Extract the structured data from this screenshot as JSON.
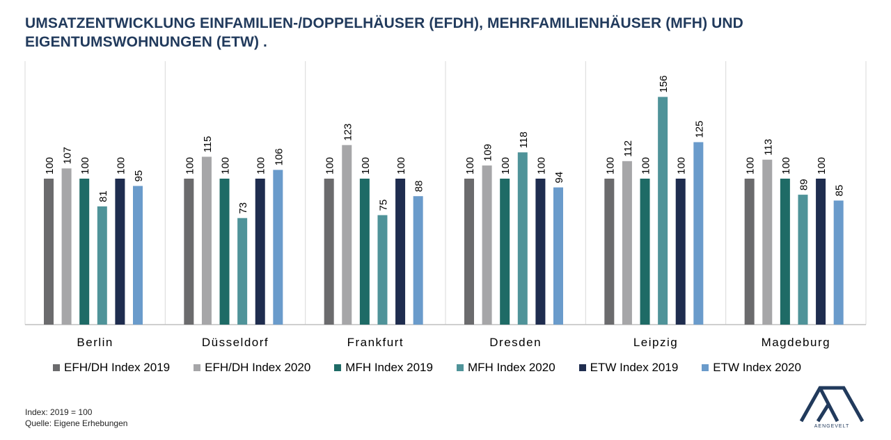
{
  "title_lines": [
    "UMSATZENTWICKLUNG EINFAMILIEN-/DOPPELHÄUSER (EFDH), MEHRFAMILIENHÄUSER (MFH) UND",
    "EIGENTUMSWOHNUNGEN (ETW) ."
  ],
  "footnotes": [
    "Index: 2019 = 100",
    "Quelle: Eigene Erhebungen"
  ],
  "logo": {
    "name": "aengevelt-logo-icon",
    "text": "AENGEVELT",
    "color": "#213a5c"
  },
  "colors": {
    "title": "#213a5c",
    "grid": "#d9d9d9",
    "axis": "#bfbfbf"
  },
  "chart_data": {
    "type": "bar",
    "categories": [
      "Berlin",
      "Düsseldorf",
      "Frankfurt",
      "Dresden",
      "Leipzig",
      "Magdeburg"
    ],
    "series": [
      {
        "name": "EFH/DH Index 2019",
        "color": "#6b6b6d",
        "values": [
          100,
          100,
          100,
          100,
          100,
          100
        ]
      },
      {
        "name": "EFH/DH Index 2020",
        "color": "#a6a6a8",
        "values": [
          107,
          115,
          123,
          109,
          112,
          113
        ]
      },
      {
        "name": "MFH Index 2019",
        "color": "#1e6b66",
        "values": [
          100,
          100,
          100,
          100,
          100,
          100
        ]
      },
      {
        "name": "MFH Index 2020",
        "color": "#4f9399",
        "values": [
          81,
          73,
          75,
          118,
          156,
          89
        ]
      },
      {
        "name": "ETW Index 2019",
        "color": "#1f2d4f",
        "values": [
          100,
          100,
          100,
          100,
          100,
          100
        ]
      },
      {
        "name": "ETW Index 2020",
        "color": "#6a9bcb",
        "values": [
          95,
          106,
          88,
          94,
          125,
          85
        ]
      }
    ],
    "ylim": [
      0,
      180
    ],
    "data_labels": true,
    "legend_position": "bottom",
    "grid": "vertical category separators"
  }
}
